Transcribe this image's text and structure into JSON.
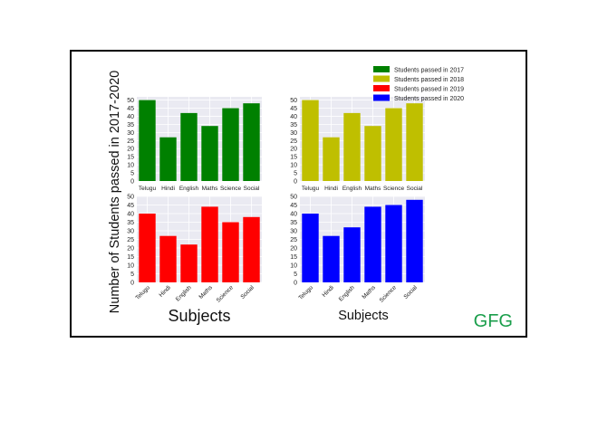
{
  "watermark": "GFG",
  "figure": {
    "ylabel": "Number of Students passed in 2017-2020",
    "xlabel_left": "Subjects",
    "xlabel_right": "Subjects"
  },
  "chart_data": [
    {
      "type": "bar",
      "categories": [
        "Telugu",
        "Hindi",
        "English",
        "Maths",
        "Science",
        "Social"
      ],
      "series": [
        {
          "name": "Students passed in 2017",
          "values": [
            50,
            27,
            42,
            34,
            45,
            48
          ]
        }
      ],
      "color": "#008000",
      "ylim": [
        0,
        52
      ],
      "yticks": [
        0,
        5,
        10,
        15,
        20,
        25,
        30,
        35,
        40,
        45,
        50
      ],
      "grid": true
    },
    {
      "type": "bar",
      "categories": [
        "Telugu",
        "Hindi",
        "English",
        "Maths",
        "Science",
        "Social"
      ],
      "series": [
        {
          "name": "Students passed in 2018",
          "values": [
            50,
            27,
            42,
            34,
            45,
            48
          ]
        }
      ],
      "color": "#bfbf00",
      "ylim": [
        0,
        52
      ],
      "yticks": [
        0,
        5,
        10,
        15,
        20,
        25,
        30,
        35,
        40,
        45,
        50
      ],
      "grid": true
    },
    {
      "type": "bar",
      "categories": [
        "Telugu",
        "Hindi",
        "English",
        "Maths",
        "Science",
        "Social"
      ],
      "series": [
        {
          "name": "Students passed in 2019",
          "values": [
            40,
            27,
            22,
            44,
            35,
            38
          ]
        }
      ],
      "color": "#ff0000",
      "ylim": [
        0,
        50
      ],
      "yticks": [
        0,
        5,
        10,
        15,
        20,
        25,
        30,
        35,
        40,
        45,
        50
      ],
      "grid": true
    },
    {
      "type": "bar",
      "categories": [
        "Telugu",
        "Hindi",
        "English",
        "Maths",
        "Science",
        "Social"
      ],
      "series": [
        {
          "name": "Students passed in 2020",
          "values": [
            40,
            27,
            32,
            44,
            45,
            48
          ]
        }
      ],
      "color": "#0000ff",
      "ylim": [
        0,
        50
      ],
      "yticks": [
        0,
        5,
        10,
        15,
        20,
        25,
        30,
        35,
        40,
        45,
        50
      ],
      "grid": true
    }
  ],
  "legend": {
    "placement": "top-right",
    "entries": [
      {
        "label": "Students passed in 2017",
        "color": "#008000"
      },
      {
        "label": "Students passed in 2018",
        "color": "#bfbf00"
      },
      {
        "label": "Students passed in 2019",
        "color": "#ff0000"
      },
      {
        "label": "Students passed in 2020",
        "color": "#0000ff"
      }
    ]
  }
}
